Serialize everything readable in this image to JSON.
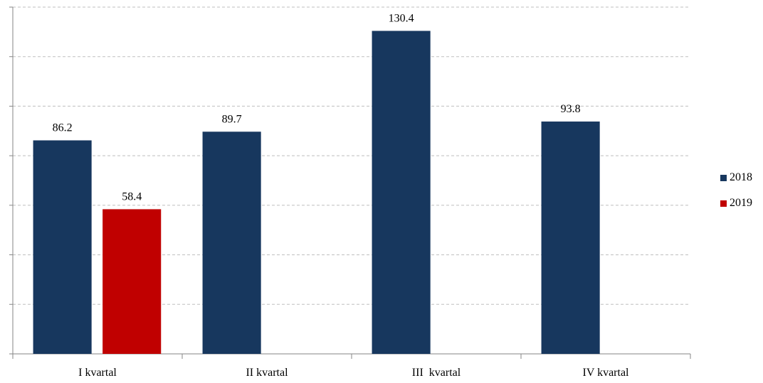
{
  "chart_data": {
    "type": "bar",
    "categories": [
      "I kvartal",
      "II kvartal",
      "III  kvartal",
      "IV kvartal"
    ],
    "series": [
      {
        "name": "2018",
        "color": "#17375e",
        "values": [
          86.2,
          89.7,
          130.4,
          93.8
        ]
      },
      {
        "name": "2019",
        "color": "#c00000",
        "values": [
          58.4,
          null,
          null,
          null
        ]
      }
    ],
    "value_labels": {
      "2018": [
        "86.2",
        "89.7",
        "130.4",
        "93.8"
      ],
      "2019": [
        "58.4",
        "",
        "",
        ""
      ]
    },
    "ylim": [
      0,
      140
    ],
    "y_grid_step": 20,
    "grid": true,
    "grid_style": "dashed",
    "y_tick_labels_shown": false,
    "legend_position": "right"
  }
}
